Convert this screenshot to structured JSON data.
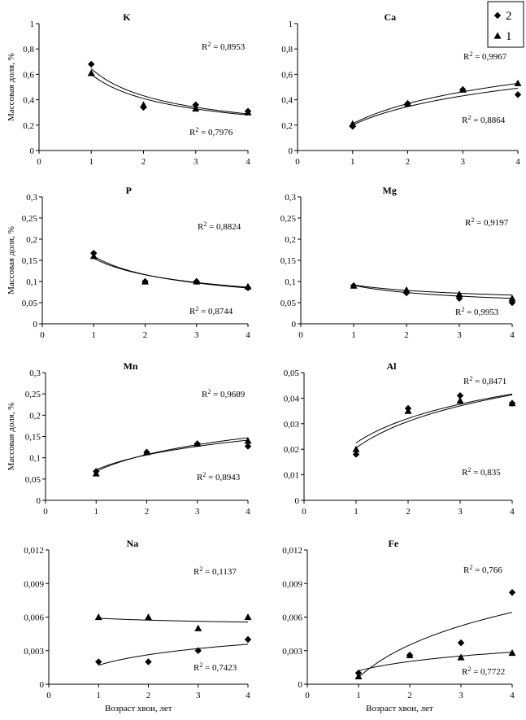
{
  "figure": {
    "x_axis_label": "Возраст хвои, лет",
    "y_axis_label": "Массовая доля, %"
  },
  "legend": [
    {
      "label": "2",
      "marker": "diamond"
    },
    {
      "label": "1",
      "marker": "triangle"
    }
  ],
  "chart_data": [
    {
      "type": "scatter",
      "title": "K",
      "xlim": [
        0,
        4
      ],
      "ylim": [
        0,
        1
      ],
      "xticks": [
        "0",
        "1",
        "2",
        "3",
        "4"
      ],
      "yticks": [
        "0",
        "0,2",
        "0,4",
        "0,6",
        "0,8",
        "1"
      ],
      "ylabel": "Массовая доля, %",
      "xlabel": "",
      "series": [
        {
          "name": "2",
          "marker": "diamond",
          "x": [
            1,
            2,
            3,
            4
          ],
          "y": [
            0.68,
            0.34,
            0.36,
            0.31
          ],
          "trend": {
            "kind": "power",
            "a": 0.645,
            "b": -0.58
          },
          "r2": "R2 = 0,7976"
        },
        {
          "name": "1",
          "marker": "triangle",
          "x": [
            1,
            2,
            3,
            4
          ],
          "y": [
            0.61,
            0.36,
            0.33,
            0.3
          ],
          "trend": {
            "kind": "power",
            "a": 0.6,
            "b": -0.55
          },
          "r2": "R2 = 0,8953"
        }
      ]
    },
    {
      "type": "scatter",
      "title": "Ca",
      "xlim": [
        0,
        4
      ],
      "ylim": [
        0,
        1
      ],
      "xticks": [
        "0",
        "1",
        "2",
        "3",
        "4"
      ],
      "yticks": [
        "0",
        "0,2",
        "0,4",
        "0,6",
        "0,8",
        "1"
      ],
      "ylabel": "",
      "xlabel": "",
      "series": [
        {
          "name": "2",
          "marker": "diamond",
          "x": [
            1,
            2,
            3,
            4
          ],
          "y": [
            0.19,
            0.37,
            0.48,
            0.44
          ],
          "trend": {
            "kind": "log",
            "a": 0.2,
            "b": 0.21
          },
          "r2": "R2 = 0,8864"
        },
        {
          "name": "1",
          "marker": "triangle",
          "x": [
            1,
            2,
            3,
            4
          ],
          "y": [
            0.21,
            0.37,
            0.48,
            0.53
          ],
          "trend": {
            "kind": "log",
            "a": 0.21,
            "b": 0.23
          },
          "r2": "R2 = 0,9967"
        }
      ]
    },
    {
      "type": "scatter",
      "title": "P",
      "xlim": [
        0,
        4
      ],
      "ylim": [
        0,
        0.3
      ],
      "xticks": [
        "0",
        "1",
        "2",
        "3",
        "4"
      ],
      "yticks": [
        "0",
        "0,05",
        "0,1",
        "0,15",
        "0,2",
        "0,25",
        "0,3"
      ],
      "ylabel": "Массовая доля, %",
      "xlabel": "",
      "series": [
        {
          "name": "2",
          "marker": "diamond",
          "x": [
            1,
            2,
            3,
            4
          ],
          "y": [
            0.167,
            0.1,
            0.1,
            0.085
          ],
          "trend": {
            "kind": "power",
            "a": 0.16,
            "b": -0.46
          },
          "r2": "R2 = 0,8744"
        },
        {
          "name": "1",
          "marker": "triangle",
          "x": [
            1,
            2,
            3,
            4
          ],
          "y": [
            0.16,
            0.1,
            0.1,
            0.088
          ],
          "trend": {
            "kind": "power",
            "a": 0.155,
            "b": -0.42
          },
          "r2": "R2 = 0,8824"
        }
      ]
    },
    {
      "type": "scatter",
      "title": "Mg",
      "xlim": [
        0,
        4
      ],
      "ylim": [
        0,
        0.3
      ],
      "xticks": [
        "0",
        "1",
        "2",
        "3",
        "4"
      ],
      "yticks": [
        "0",
        "0,05",
        "0,1",
        "0,15",
        "0,2",
        "0,25",
        "0,3"
      ],
      "ylabel": "",
      "xlabel": "",
      "series": [
        {
          "name": "2",
          "marker": "diamond",
          "x": [
            1,
            2,
            3,
            4
          ],
          "y": [
            0.09,
            0.073,
            0.06,
            0.05
          ],
          "trend": {
            "kind": "power",
            "a": 0.091,
            "b": -0.3
          },
          "r2": "R2 = 0,9953"
        },
        {
          "name": "1",
          "marker": "triangle",
          "x": [
            1,
            2,
            3,
            4
          ],
          "y": [
            0.09,
            0.08,
            0.07,
            0.06
          ],
          "trend": {
            "kind": "power",
            "a": 0.092,
            "b": -0.22
          },
          "r2": "R2 = 0,9197"
        }
      ]
    },
    {
      "type": "scatter",
      "title": "Mn",
      "xlim": [
        0,
        4
      ],
      "ylim": [
        0,
        0.3
      ],
      "xticks": [
        "0",
        "1",
        "2",
        "3",
        "4"
      ],
      "yticks": [
        "0",
        "0,05",
        "0,1",
        "0,15",
        "0,2",
        "0,25",
        "0,3"
      ],
      "ylabel": "Массовая доля, %",
      "xlabel": "",
      "series": [
        {
          "name": "2",
          "marker": "diamond",
          "x": [
            1,
            2,
            3,
            4
          ],
          "y": [
            0.068,
            0.113,
            0.133,
            0.127
          ],
          "trend": {
            "kind": "log",
            "a": 0.072,
            "b": 0.05
          },
          "r2": "R2 = 0,8943"
        },
        {
          "name": "1",
          "marker": "triangle",
          "x": [
            1,
            2,
            3,
            4
          ],
          "y": [
            0.063,
            0.113,
            0.133,
            0.14
          ],
          "trend": {
            "kind": "log",
            "a": 0.068,
            "b": 0.057
          },
          "r2": "R2 = 0,9689"
        }
      ]
    },
    {
      "type": "scatter",
      "title": "Al",
      "xlim": [
        0,
        4
      ],
      "ylim": [
        0,
        0.05
      ],
      "xticks": [
        "0",
        "1",
        "2",
        "3",
        "4"
      ],
      "yticks": [
        "0",
        "0,01",
        "0,02",
        "0,03",
        "0,04",
        "0,05"
      ],
      "ylabel": "",
      "xlabel": "",
      "series": [
        {
          "name": "2",
          "marker": "diamond",
          "x": [
            1,
            2,
            3,
            4
          ],
          "y": [
            0.018,
            0.036,
            0.041,
            0.038
          ],
          "trend": {
            "kind": "log",
            "a": 0.0205,
            "b": 0.015
          },
          "r2": "R2 = 0,835"
        },
        {
          "name": "1",
          "marker": "triangle",
          "x": [
            1,
            2,
            3,
            4
          ],
          "y": [
            0.02,
            0.035,
            0.039,
            0.038
          ],
          "trend": {
            "kind": "log",
            "a": 0.0225,
            "b": 0.0138
          },
          "r2": "R2 = 0,8471"
        }
      ]
    },
    {
      "type": "scatter",
      "title": "Na",
      "xlim": [
        0,
        4
      ],
      "ylim": [
        0,
        0.012
      ],
      "xticks": [
        "0",
        "1",
        "2",
        "3",
        "4"
      ],
      "yticks": [
        "0",
        "0,003",
        "0,006",
        "0,009",
        "0,012"
      ],
      "ylabel": "",
      "xlabel": "Возраст хвои, лет",
      "series": [
        {
          "name": "2",
          "marker": "diamond",
          "x": [
            1,
            2,
            3,
            4
          ],
          "y": [
            0.002,
            0.002,
            0.003,
            0.004
          ],
          "trend": {
            "kind": "log",
            "a": 0.0017,
            "b": 0.00135
          },
          "r2": "R2 = 0,7423"
        },
        {
          "name": "1",
          "marker": "triangle",
          "x": [
            1,
            2,
            3,
            4
          ],
          "y": [
            0.006,
            0.006,
            0.005,
            0.006
          ],
          "trend": {
            "kind": "log",
            "a": 0.0059,
            "b": -0.00025
          },
          "r2": "R2 = 0,1137"
        }
      ]
    },
    {
      "type": "scatter",
      "title": "Fe",
      "xlim": [
        0,
        4
      ],
      "ylim": [
        0,
        0.012
      ],
      "xticks": [
        "0",
        "1",
        "2",
        "3",
        "4"
      ],
      "yticks": [
        "0",
        "0,003",
        "0,006",
        "0,009",
        "0,012"
      ],
      "ylabel": "",
      "xlabel": "Возраст хвои, лет",
      "series": [
        {
          "name": "2",
          "marker": "diamond",
          "x": [
            1,
            2,
            3,
            4
          ],
          "y": [
            0.001,
            0.0026,
            0.0037,
            0.0082
          ],
          "trend": {
            "kind": "log",
            "a": 0.0006,
            "b": 0.0042
          },
          "r2": "R2 = 0,7722"
        },
        {
          "name": "1",
          "marker": "triangle",
          "x": [
            1,
            2,
            3,
            4
          ],
          "y": [
            0.0007,
            0.0026,
            0.0024,
            0.0028
          ],
          "trend": {
            "kind": "log",
            "a": 0.0012,
            "b": 0.0012
          },
          "r2": "R2 = 0,766"
        }
      ]
    }
  ]
}
